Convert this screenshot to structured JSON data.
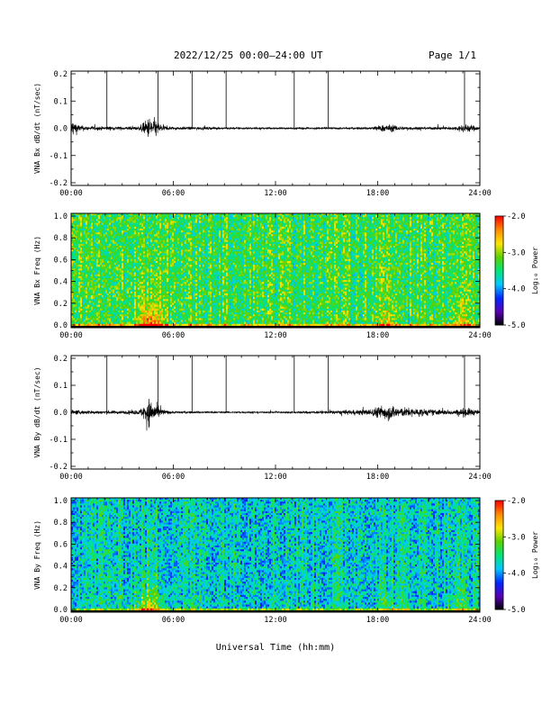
{
  "header": {
    "title": "2022/12/25  00:00–24:00 UT",
    "page": "Page 1/1"
  },
  "xaxis": {
    "label": "Universal Time (hh:mm)",
    "ticks": [
      "00:00",
      "06:00",
      "12:00",
      "18:00",
      "24:00"
    ],
    "range_hours": [
      0,
      24
    ]
  },
  "colorbar": {
    "label": "Log₁₀ Power",
    "ticks": [
      "-2.0",
      "-3.0",
      "-4.0",
      "-5.0"
    ],
    "range": [
      -5.0,
      -2.0
    ],
    "colors": [
      "#000000",
      "#5a00b4",
      "#0028ff",
      "#00c8ff",
      "#00e678",
      "#5ad200",
      "#ffe600",
      "#ff8c00",
      "#ff0000"
    ]
  },
  "chart_data": [
    {
      "type": "line",
      "name": "bx-timeseries",
      "ylabel": "VNA Bx dB/dt (nT/sec)",
      "ylim": [
        -0.2,
        0.2
      ],
      "yticks": [
        "0.2",
        "0.1",
        "0.0",
        "-0.1",
        "-0.2"
      ],
      "marker_hours": [
        2.1,
        5.1,
        7.1,
        9.1,
        13.1,
        15.1,
        23.1
      ],
      "x_hours": [
        0,
        0.5,
        1,
        2,
        3,
        4,
        4.3,
        4.6,
        4.9,
        5.2,
        5.6,
        6,
        8,
        10,
        12,
        14,
        16,
        17.5,
        18.5,
        19.5,
        21,
        22.5,
        23.2,
        24
      ],
      "envelope": [
        0.06,
        0.02,
        0.012,
        0.012,
        0.01,
        0.012,
        0.04,
        0.07,
        0.06,
        0.03,
        0.012,
        0.01,
        0.008,
        0.006,
        0.006,
        0.006,
        0.006,
        0.008,
        0.025,
        0.012,
        0.008,
        0.01,
        0.03,
        0.008
      ]
    },
    {
      "type": "heatmap",
      "name": "bx-spectrogram",
      "ylabel": "VNA Bx Freq (Hz)",
      "ylim": [
        0,
        1.0
      ],
      "yticks": [
        "1.0",
        "0.8",
        "0.6",
        "0.4",
        "0.2",
        "0.0"
      ],
      "bursts": [
        {
          "hour": 4.6,
          "width": 0.7,
          "strength": 1.0
        },
        {
          "hour": 18.5,
          "width": 0.6,
          "strength": 0.4
        },
        {
          "hour": 22.8,
          "width": 0.5,
          "strength": 0.4
        }
      ],
      "background_log_power": -3.3
    },
    {
      "type": "line",
      "name": "by-timeseries",
      "ylabel": "VNA By dB/dt (nT/sec)",
      "ylim": [
        -0.2,
        0.2
      ],
      "yticks": [
        "0.2",
        "0.1",
        "0.0",
        "-0.1",
        "-0.2"
      ],
      "marker_hours": [
        2.1,
        5.1,
        7.1,
        9.1,
        13.1,
        15.1,
        23.1
      ],
      "x_hours": [
        0,
        0.5,
        1,
        2,
        3,
        4,
        4.3,
        4.6,
        4.9,
        5.2,
        5.6,
        6,
        8,
        10,
        12,
        14,
        16,
        17.5,
        18.5,
        19.5,
        21,
        22.5,
        23.2,
        24
      ],
      "envelope": [
        0.015,
        0.012,
        0.012,
        0.012,
        0.01,
        0.015,
        0.05,
        0.09,
        0.06,
        0.03,
        0.012,
        0.008,
        0.006,
        0.005,
        0.005,
        0.008,
        0.012,
        0.02,
        0.05,
        0.03,
        0.02,
        0.015,
        0.03,
        0.01
      ]
    },
    {
      "type": "heatmap",
      "name": "by-spectrogram",
      "ylabel": "VNA By Freq (Hz)",
      "ylim": [
        0,
        1.0
      ],
      "yticks": [
        "1.0",
        "0.8",
        "0.6",
        "0.4",
        "0.2",
        "0.0"
      ],
      "bursts": [
        {
          "hour": 4.6,
          "width": 0.8,
          "strength": 0.8
        },
        {
          "hour": 18.5,
          "width": 0.6,
          "strength": 0.35
        },
        {
          "hour": 22.8,
          "width": 0.5,
          "strength": 0.35
        }
      ],
      "background_log_power": -3.7
    }
  ]
}
